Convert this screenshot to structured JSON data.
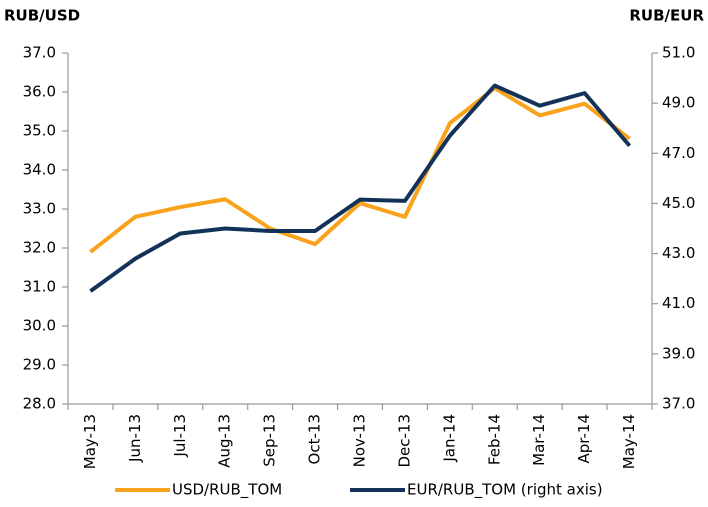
{
  "chart_data": {
    "type": "line",
    "y_label": "RUB/USD",
    "y2_label": "RUB/EUR",
    "categories": [
      "May-13",
      "Jun-13",
      "Jul-13",
      "Aug-13",
      "Sep-13",
      "Oct-13",
      "Nov-13",
      "Dec-13",
      "Jan-14",
      "Feb-14",
      "Mar-14",
      "Apr-14",
      "May-14"
    ],
    "series": [
      {
        "name": "USD/RUB_TOM",
        "color": "#f9a21b",
        "values": [
          31.9,
          32.8,
          33.05,
          33.25,
          32.5,
          32.1,
          33.15,
          32.8,
          35.2,
          36.1,
          35.4,
          35.7,
          34.8
        ]
      },
      {
        "name": "EUR/RUB_TOM (right axis)",
        "color": "#13325a",
        "axis": "y2",
        "values": [
          41.5,
          42.8,
          43.8,
          44.0,
          43.9,
          43.9,
          45.15,
          45.1,
          47.7,
          49.7,
          48.9,
          49.4,
          47.3
        ]
      }
    ],
    "ylim": [
      28,
      37
    ],
    "yticks": [
      {
        "value": 28,
        "label": "28.0"
      },
      {
        "value": 29,
        "label": "29.0"
      },
      {
        "value": 30,
        "label": "30.0"
      },
      {
        "value": 31,
        "label": "31.0"
      },
      {
        "value": 32,
        "label": "32.0"
      },
      {
        "value": 33,
        "label": "33.0"
      },
      {
        "value": 34,
        "label": "34.0"
      },
      {
        "value": 35,
        "label": "35.0"
      },
      {
        "value": 36,
        "label": "36.0"
      },
      {
        "value": 37,
        "label": "37.0"
      }
    ],
    "y2lim": [
      37,
      51
    ],
    "y2ticks": [
      {
        "value": 37,
        "label": "37.0"
      },
      {
        "value": 39,
        "label": "39.0"
      },
      {
        "value": 41,
        "label": "41.0"
      },
      {
        "value": 43,
        "label": "43.0"
      },
      {
        "value": 45,
        "label": "45.0"
      },
      {
        "value": 47,
        "label": "47.0"
      },
      {
        "value": 49,
        "label": "49.0"
      },
      {
        "value": 51,
        "label": "51.0"
      }
    ],
    "grid": false,
    "legend": "bottom"
  }
}
